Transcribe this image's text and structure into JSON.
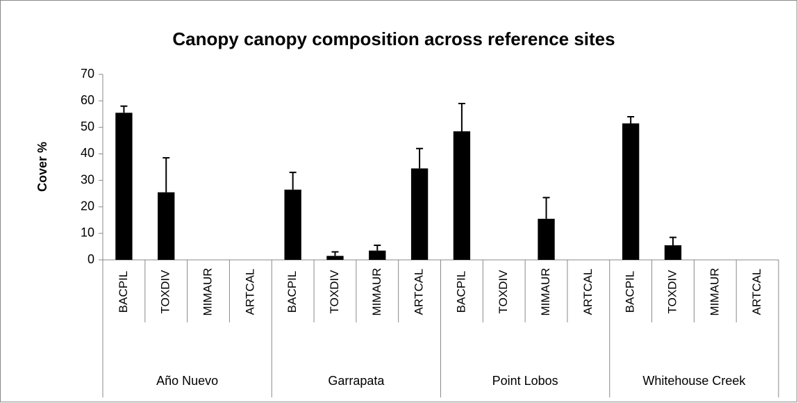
{
  "chart_data": {
    "type": "bar",
    "title": "Canopy canopy composition across reference sites",
    "y_label": "Cover %",
    "categories": [
      "BACPIL",
      "TOXDIV",
      "MIMAUR",
      "ARTCAL",
      "BACPIL",
      "TOXDIV",
      "MIMAUR",
      "ARTCAL",
      "BACPIL",
      "TOXDIV",
      "MIMAUR",
      "ARTCAL",
      "BACPIL",
      "TOXDIV",
      "MIMAUR",
      "ARTCAL"
    ],
    "groups": [
      "Año Nuevo",
      "Garrapata",
      "Point Lobos",
      "Whitehouse Creek"
    ],
    "values": [
      55.5,
      25.5,
      0,
      0,
      26.5,
      1.5,
      3.5,
      34.5,
      48.5,
      0,
      15.5,
      0,
      51.5,
      5.5,
      0,
      0
    ],
    "errors": [
      2.5,
      13,
      0,
      0,
      6.5,
      1.5,
      2,
      7.5,
      10.5,
      0,
      8,
      0,
      2.5,
      3,
      0,
      0
    ],
    "color": "#000000",
    "ylim": [
      0,
      70
    ],
    "yticks": [
      0,
      10,
      20,
      30,
      40,
      50,
      60,
      70
    ],
    "grid": false
  }
}
